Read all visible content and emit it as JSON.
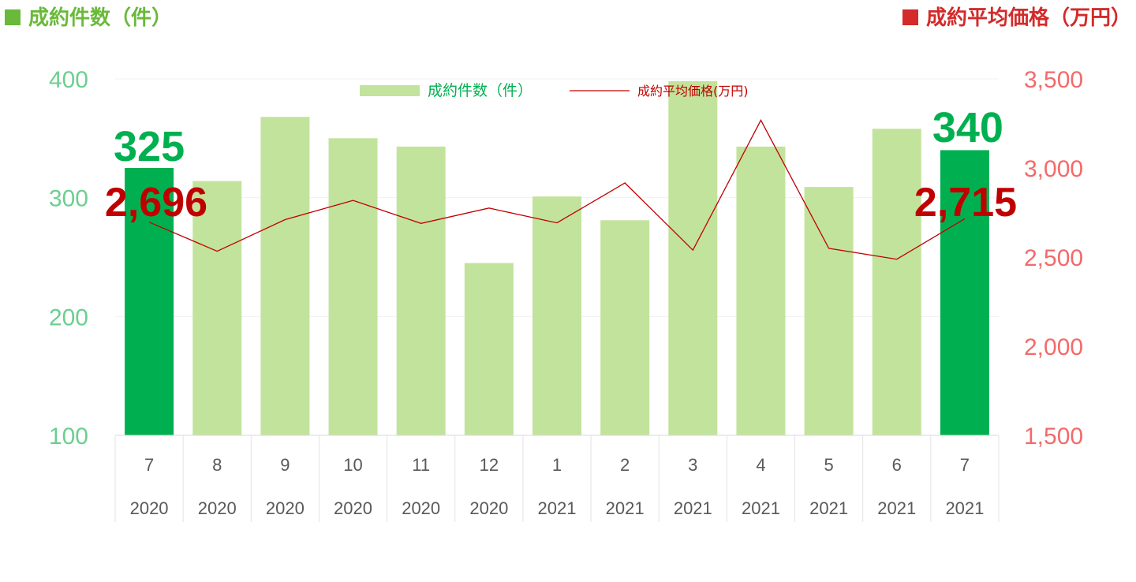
{
  "titles": {
    "left": "成約件数（件）",
    "right": "成約平均価格（万円）"
  },
  "colors": {
    "title_left": "#6ab93a",
    "title_right": "#d42a2a",
    "bar_light": "#c2e39c",
    "bar_highlight": "#00b050",
    "line": "#c00000",
    "left_axis_text": "#6ccf8f",
    "right_axis_text": "#f36a6a",
    "highlight_bar_label": "#00b050",
    "highlight_line_label": "#c00000"
  },
  "chart_data": {
    "type": "bar",
    "categories": [
      "7",
      "8",
      "9",
      "10",
      "11",
      "12",
      "1",
      "2",
      "3",
      "4",
      "5",
      "6",
      "7"
    ],
    "years": [
      "2020",
      "2020",
      "2020",
      "2020",
      "2020",
      "2020",
      "2021",
      "2021",
      "2021",
      "2021",
      "2021",
      "2021",
      "2021"
    ],
    "series": [
      {
        "name": "成約件数（件）",
        "type": "bar",
        "axis": "left",
        "values": [
          325,
          314,
          368,
          350,
          343,
          245,
          301,
          281,
          398,
          343,
          309,
          358,
          340
        ],
        "highlight_indices": [
          0,
          12
        ]
      },
      {
        "name": "成約平均価格(万円)",
        "type": "line",
        "axis": "right",
        "values": [
          2696,
          2533,
          2710,
          2818,
          2689,
          2775,
          2692,
          2916,
          2539,
          3268,
          2549,
          2488,
          2715
        ]
      }
    ],
    "left_axis": {
      "ylim": [
        100,
        400
      ],
      "ticks": [
        "100",
        "200",
        "300",
        "400"
      ]
    },
    "right_axis": {
      "ylim": [
        1500,
        3500
      ],
      "ticks": [
        "1,500",
        "2,000",
        "2,500",
        "3,000",
        "3,500"
      ]
    },
    "annotations": {
      "first_bar": "325",
      "last_bar": "340",
      "first_line": "2,696",
      "last_line": "2,715"
    },
    "legend": {
      "position": "top-center",
      "bar_label": "成約件数（件）",
      "line_label": "成約平均価格(万円)"
    },
    "grid": true
  }
}
